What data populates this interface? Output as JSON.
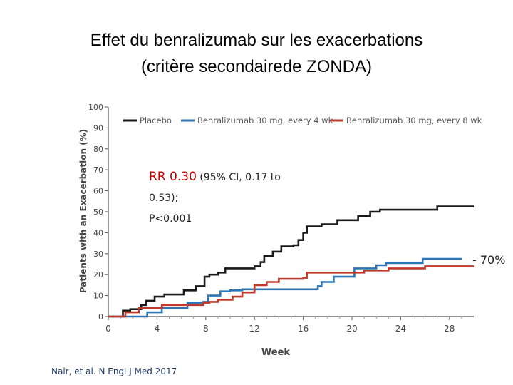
{
  "title": {
    "line1": "Effet du benralizumab sur les exacerbations",
    "line2": "(critère secondairede ZONDA)"
  },
  "annotation": {
    "rr_label": "RR 0.30",
    "rr_detail": " (95% CI, 0.17 to",
    "rr_line2": "0.53);",
    "rr_line3": "P<0.001",
    "reduction": "- 70%"
  },
  "citation": "Nair, et al. N Engl J Med 2017",
  "chart_data": {
    "type": "line",
    "step": true,
    "title": "",
    "xlabel": "Week",
    "ylabel": "Patients with an Exacerbation (%)",
    "xlim": [
      0,
      30
    ],
    "ylim": [
      0,
      100
    ],
    "xticks": [
      "0",
      "4",
      "8",
      "12",
      "16",
      "20",
      "24",
      "28"
    ],
    "xtick_values": [
      0,
      4,
      8,
      12,
      16,
      20,
      24,
      28
    ],
    "yticks": [
      "0",
      "10",
      "20",
      "30",
      "40",
      "50",
      "60",
      "70",
      "80",
      "90",
      "100"
    ],
    "ytick_values": [
      0,
      10,
      20,
      30,
      40,
      50,
      60,
      70,
      80,
      90,
      100
    ],
    "legend_position": "top",
    "series": [
      {
        "name": "Placebo",
        "color": "#1a1a1a",
        "x": [
          0,
          0.8,
          1.2,
          1.8,
          2.7,
          3.1,
          3.8,
          4.6,
          6.2,
          7.2,
          7.9,
          8.3,
          9.0,
          9.6,
          10.5,
          12.0,
          12.5,
          12.8,
          13.5,
          14.2,
          15.2,
          15.6,
          16.0,
          16.3,
          17.5,
          18.8,
          20.5,
          21.5,
          22.3,
          23.0,
          27.0,
          30.0
        ],
        "y": [
          0,
          0,
          2.8,
          3.5,
          5.5,
          7.5,
          9.5,
          10.5,
          12.5,
          14.5,
          19,
          20,
          21,
          23,
          23,
          24,
          26,
          29,
          31,
          33.5,
          34,
          36.5,
          40,
          43,
          44,
          46,
          48,
          50,
          51,
          51,
          52.5,
          52.5
        ]
      },
      {
        "name": "Benralizumab 30 mg, every 4 wk",
        "color": "#2e75b6",
        "x": [
          0,
          1.0,
          3.2,
          4.4,
          6.5,
          7.8,
          8.2,
          9.2,
          10.0,
          11.0,
          16.0,
          17.2,
          17.5,
          18.5,
          20.2,
          22.0,
          22.8,
          25.8,
          29.0
        ],
        "y": [
          0,
          0,
          2,
          4,
          6.5,
          7,
          10,
          12,
          12.5,
          13,
          13,
          14.5,
          16.5,
          19,
          23,
          24.5,
          25.5,
          27.5,
          27.5
        ]
      },
      {
        "name": "Benralizumab 30 mg, every 8 wk",
        "color": "#c0392b",
        "x": [
          0,
          1.0,
          1.4,
          2.5,
          4.4,
          7.8,
          8.3,
          9.0,
          10.2,
          11.0,
          12.0,
          13.0,
          14.0,
          16.0,
          16.3,
          21.0,
          23.0,
          26.0,
          30.0
        ],
        "y": [
          0,
          0,
          2,
          4,
          5.5,
          6.5,
          7,
          8,
          9.5,
          11.5,
          15,
          16.5,
          18,
          18.5,
          21,
          22,
          23,
          24,
          24
        ]
      }
    ]
  }
}
